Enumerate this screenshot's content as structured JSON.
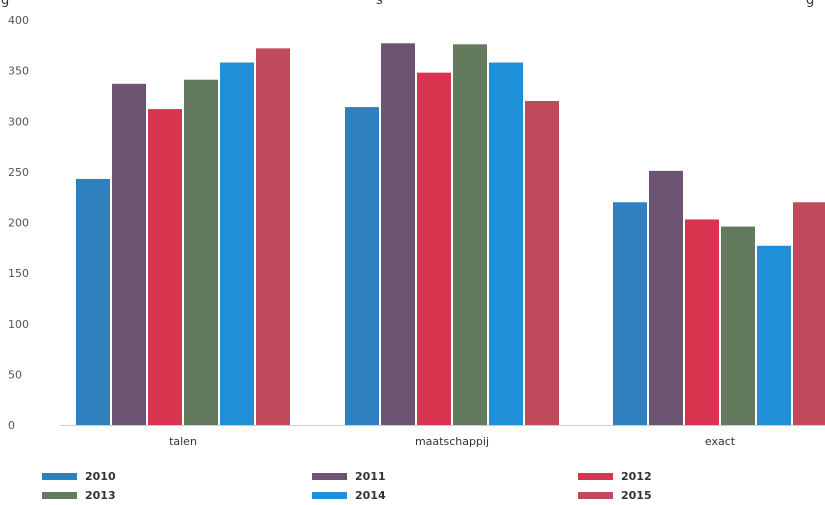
{
  "header_fragment": {
    "left": "g",
    "middle": "s",
    "right": "g"
  },
  "chart_data": {
    "type": "bar",
    "title": "",
    "xlabel": "",
    "ylabel": "",
    "ylim": [
      0,
      400
    ],
    "yticks": [
      0,
      50,
      100,
      150,
      200,
      250,
      300,
      350,
      400
    ],
    "categories": [
      "talen",
      "maatschappij",
      "exact"
    ],
    "series": [
      {
        "name": "2010",
        "color": "#2e80bf",
        "values": [
          243,
          314,
          220
        ]
      },
      {
        "name": "2011",
        "color": "#6e5473",
        "values": [
          337,
          377,
          251
        ]
      },
      {
        "name": "2012",
        "color": "#d8344f",
        "values": [
          312,
          348,
          203
        ]
      },
      {
        "name": "2013",
        "color": "#647a5f",
        "values": [
          341,
          376,
          196
        ]
      },
      {
        "name": "2014",
        "color": "#1f8fd8",
        "values": [
          358,
          358,
          177
        ]
      },
      {
        "name": "2015",
        "color": "#c04a5c",
        "values": [
          372,
          320,
          220
        ]
      }
    ],
    "grid": false,
    "legend_position": "bottom"
  }
}
